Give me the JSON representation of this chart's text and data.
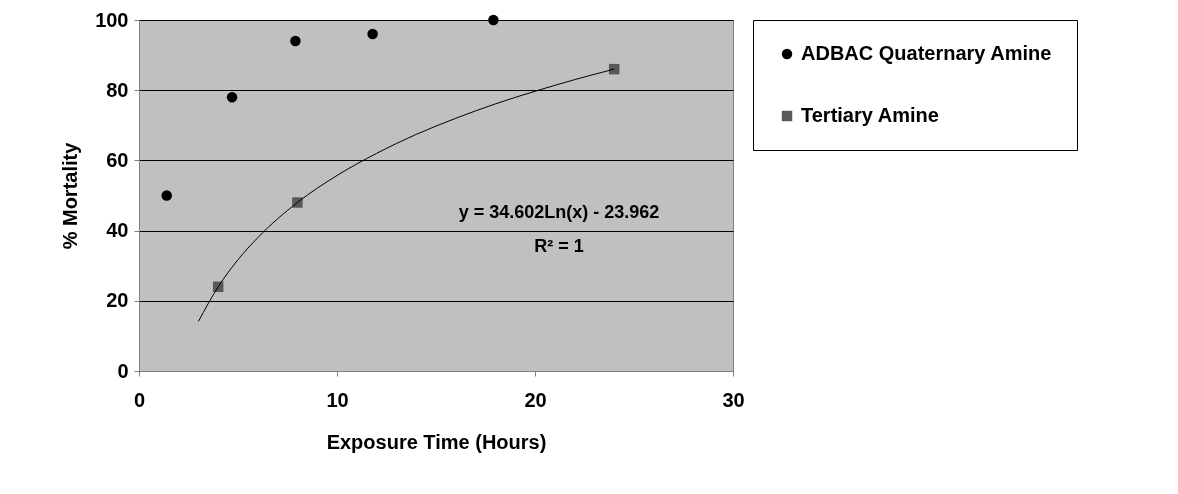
{
  "chart_data": {
    "type": "scatter",
    "xlabel": "Exposure Time (Hours)",
    "ylabel": "% Mortality",
    "xlim": [
      0,
      30
    ],
    "xticks": [
      0,
      10,
      20,
      30
    ],
    "ylim": [
      0,
      100
    ],
    "yticks": [
      0,
      20,
      40,
      60,
      80,
      100
    ],
    "grid": "y",
    "legend": "right",
    "annotations": [
      "y = 34.602Ln(x) - 23.962",
      "R² = 1"
    ],
    "series": [
      {
        "name": "ADBAC Quaternary Amine",
        "color": "#000000",
        "marker": "circle",
        "x": [
          1.4,
          4.7,
          7.9,
          11.8,
          17.9
        ],
        "values": [
          50,
          78,
          94,
          96,
          100
        ]
      },
      {
        "name": "Tertiary Amine",
        "color": "#595959",
        "marker": "square",
        "x": [
          4,
          8,
          24
        ],
        "values": [
          24,
          48,
          86
        ]
      },
      {
        "type": "line",
        "color": "#000000",
        "marker": "none",
        "x": [
          3,
          4,
          5,
          6,
          8,
          10,
          12,
          14,
          16,
          18,
          20,
          22,
          24
        ],
        "values": [
          14.1,
          24.0,
          31.7,
          38.0,
          48.0,
          55.7,
          62.0,
          67.4,
          72.0,
          76.1,
          79.7,
          83.0,
          86.0
        ]
      }
    ]
  }
}
